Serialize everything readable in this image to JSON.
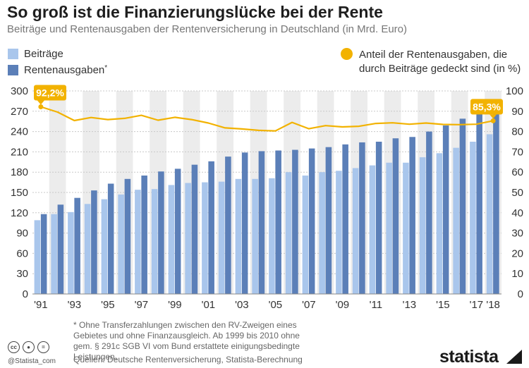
{
  "title": "So groß ist die Finanzierungslücke bei der Rente",
  "subtitle": "Beiträge und Rentenausgaben der Rentenversicherung in Deutschland (in Mrd. Euro)",
  "legend": {
    "beitraege": "Beiträge",
    "rentenausgaben": "Rentenausgaben",
    "rentenausgaben_star": "*",
    "anteil": "Anteil der Rentenausgaben, die durch Beiträge gedeckt sind (in %)"
  },
  "footnote": "* Ohne Transferzahlungen zwischen den RV-Zweigen eines Gebietes und ohne Finanzausgleich. Ab 1999 bis 2010 ohne gem. § 291c SGB VI vom Bund erstattete einigungsbedingte Leistungen.",
  "sources": "Quellen: Deutsche Rentenversicherung, Statista-Berechnung",
  "credit": "@Statista_com",
  "logo": "statista",
  "cc_icons": [
    "cc-icon",
    "by-icon",
    "equals-icon"
  ],
  "colors": {
    "beitraege": "#a9c6ec",
    "rentenausgaben": "#5b7fb8",
    "anteil": "#f2b200",
    "band": "#ececec"
  },
  "chart_data": {
    "type": "bar",
    "categories": [
      "'91",
      "'92",
      "'93",
      "'94",
      "'95",
      "'96",
      "'97",
      "'98",
      "'99",
      "'00",
      "'01",
      "'02",
      "'03",
      "'04",
      "'05",
      "'06",
      "'07",
      "'08",
      "'09",
      "'10",
      "'11",
      "'12",
      "'13",
      "'14",
      "'15",
      "'16",
      "'17",
      "'18"
    ],
    "x_tick_labels": [
      "'91",
      "'93",
      "'95",
      "'97",
      "'99",
      "'01",
      "'03",
      "'05",
      "'07",
      "'09",
      "'11",
      "'13",
      "'15",
      "'17",
      "'18"
    ],
    "series": [
      {
        "name": "Beiträge",
        "axis": "left",
        "values": [
          109,
          118,
          121,
          133,
          140,
          147,
          154,
          155,
          161,
          164,
          165,
          166,
          170,
          170,
          171,
          180,
          175,
          180,
          182,
          186,
          190,
          194,
          194,
          202,
          208,
          216,
          225,
          236
        ]
      },
      {
        "name": "Rentenausgaben*",
        "axis": "left",
        "values": [
          118,
          132,
          142,
          153,
          163,
          170,
          175,
          181,
          185,
          191,
          196,
          203,
          209,
          211,
          212,
          213,
          215,
          217,
          221,
          224,
          225,
          230,
          232,
          240,
          249,
          259,
          269,
          277
        ]
      },
      {
        "name": "Anteil der Rentenausgaben, die durch Beiträge gedeckt sind (in %)",
        "type": "line",
        "axis": "right",
        "values": [
          92.2,
          89.6,
          85.4,
          86.9,
          85.9,
          86.5,
          88.0,
          85.6,
          87.0,
          85.9,
          84.2,
          81.8,
          81.3,
          80.6,
          80.3,
          84.5,
          81.4,
          82.9,
          82.3,
          82.6,
          84.0,
          84.3,
          83.6,
          84.2,
          83.5,
          83.4,
          83.6,
          85.3
        ]
      }
    ],
    "annotations": [
      {
        "category": "'91",
        "series": "Anteil",
        "label": "92,2%"
      },
      {
        "category": "'18",
        "series": "Anteil",
        "label": "85,3%"
      }
    ],
    "y_left": {
      "ylim": [
        0,
        300
      ],
      "ticks": [
        "0",
        "30",
        "60",
        "90",
        "120",
        "150",
        "180",
        "210",
        "240",
        "270",
        "300"
      ]
    },
    "y_right": {
      "ylim": [
        0,
        100
      ],
      "ticks": [
        "0",
        "10",
        "20",
        "30",
        "40",
        "50",
        "60",
        "70",
        "80",
        "90",
        "100"
      ]
    },
    "grid": true,
    "alternating_bands": true,
    "legend_position": "top-left and top-right"
  }
}
